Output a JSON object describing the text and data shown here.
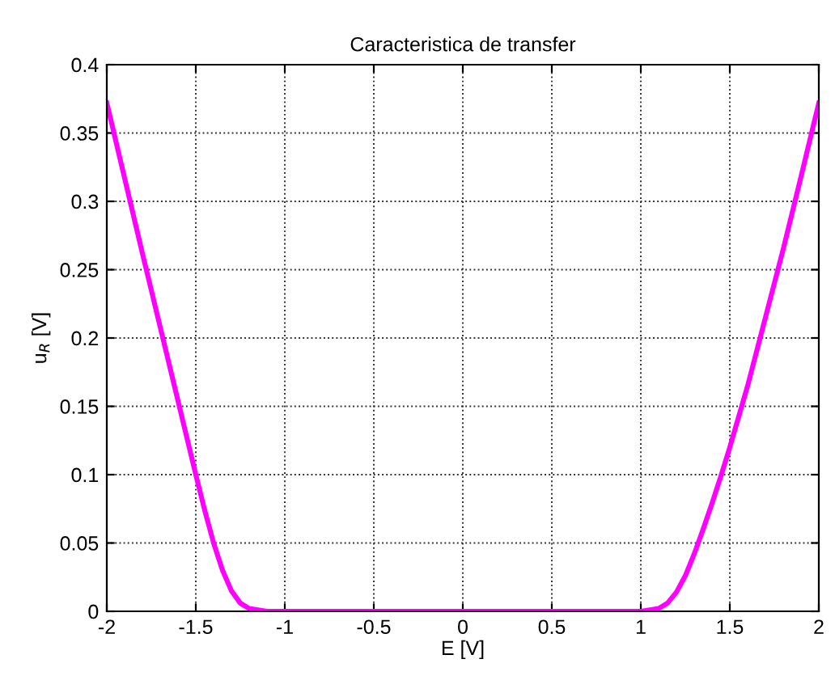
{
  "chart_data": {
    "type": "line",
    "title": "Caracteristica de transfer",
    "xlabel": "E [V]",
    "ylabel": "u$_{R}$ [V]",
    "series": [
      {
        "color": "#ff00ff",
        "x": [
          -2,
          -1.9,
          -1.8,
          -1.75,
          -1.7,
          -1.6,
          -1.5,
          -1.45,
          -1.4,
          -1.35,
          -1.3,
          -1.25,
          -1.2,
          -1.15,
          -1.1,
          -1.05,
          -1.0,
          -0.5,
          0,
          0.5,
          1.0,
          1.05,
          1.1,
          1.15,
          1.2,
          1.25,
          1.3,
          1.35,
          1.4,
          1.45,
          1.5,
          1.6,
          1.7,
          1.75,
          1.8,
          1.9,
          2
        ],
        "values": [
          0.372,
          0.317,
          0.262,
          0.235,
          0.208,
          0.154,
          0.1,
          0.074,
          0.05,
          0.03,
          0.015,
          0.006,
          0.002,
          0.001,
          0,
          0,
          0,
          0,
          0,
          0,
          0,
          0.001,
          0.002,
          0.006,
          0.014,
          0.026,
          0.042,
          0.06,
          0.079,
          0.099,
          0.12,
          0.165,
          0.215,
          0.24,
          0.265,
          0.318,
          0.372
        ]
      }
    ],
    "xlim": [
      -2,
      2
    ],
    "ylim": [
      0,
      0.4
    ],
    "xticks": [
      -2,
      -1.5,
      -1,
      -0.5,
      0,
      0.5,
      1,
      1.5,
      2
    ],
    "yticks": [
      0,
      0.05,
      0.1,
      0.15,
      0.2,
      0.25,
      0.3,
      0.35,
      0.4
    ],
    "grid": true,
    "line_style": "solid",
    "marker": "none"
  }
}
